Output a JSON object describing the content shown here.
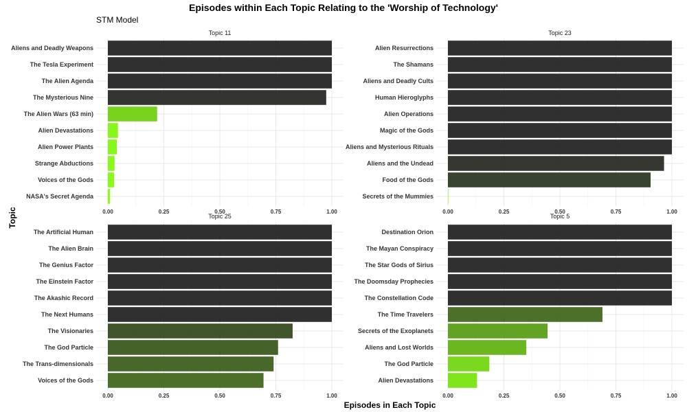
{
  "chart_data": {
    "type": "bar",
    "title": "Episodes within Each Topic Relating to the 'Worship of Technology'",
    "subtitle": "STM Model",
    "xlabel": "Episodes in Each Topic",
    "ylabel": "Topic",
    "xlim": [
      0,
      1
    ],
    "xticks": [
      "0.00",
      "0.25",
      "0.50",
      "0.75",
      "1.00"
    ],
    "grid": true,
    "colors": {
      "low": "#7fff00",
      "high": "#1a1a1a"
    },
    "panels": [
      {
        "name": "Topic 11",
        "categories": [
          "Aliens and Deadly Weapons",
          "The Tesla Experiment",
          "The Alien Agenda",
          "The Mysterious Nine",
          "The Alien Wars (63 min)",
          "Alien Devastations",
          "Alien Power Plants",
          "Strange Abductions",
          "Voices of the Gods",
          "NASA's Secret Agenda"
        ],
        "values": [
          1.0,
          1.0,
          1.0,
          0.975,
          0.22,
          0.045,
          0.04,
          0.03,
          0.028,
          0.01
        ]
      },
      {
        "name": "Topic 23",
        "categories": [
          "Alien Resurrections",
          "The Shamans",
          "Aliens and Deadly Cults",
          "Human Hieroglyphs",
          "Alien Operations",
          "Magic of the Gods",
          "Aliens and Mysterious Rituals",
          "Aliens and the Undead",
          "Food of the Gods",
          "Secrets of the Mummies"
        ],
        "values": [
          1.0,
          1.0,
          1.0,
          1.0,
          1.0,
          1.0,
          1.0,
          0.965,
          0.905,
          0.002
        ]
      },
      {
        "name": "Topic 25",
        "categories": [
          "The Artificial Human",
          "The Alien Brain",
          "The Genius Factor",
          "The Einstein Factor",
          "The Akashic Record",
          "The Next Humans",
          "The Visionaries",
          "The God Particle",
          "The Trans-dimensionals",
          "Voices of the Gods"
        ],
        "values": [
          1.0,
          1.0,
          1.0,
          1.0,
          1.0,
          1.0,
          0.825,
          0.76,
          0.74,
          0.695
        ]
      },
      {
        "name": "Topic 5",
        "categories": [
          "Destination Orion",
          "The Mayan Conspiracy",
          "The Star Gods of Sirius",
          "The Doomsday Prophecies",
          "The Constellation Code",
          "The Time Travelers",
          "Secrets of the Exoplanets",
          "Aliens and Lost Worlds",
          "The God Particle",
          "Alien Devastations"
        ],
        "values": [
          1.0,
          1.0,
          1.0,
          1.0,
          1.0,
          0.69,
          0.445,
          0.35,
          0.185,
          0.13
        ]
      }
    ]
  }
}
